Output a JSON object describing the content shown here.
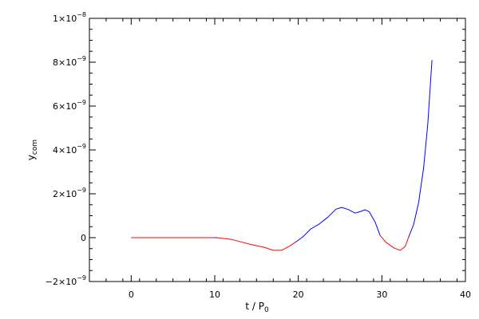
{
  "chart_data": {
    "type": "line",
    "title": "",
    "xlabel": "t / P",
    "xlabel_sub": "0",
    "ylabel": "y",
    "ylabel_sub": "com",
    "xlim": [
      -5,
      40
    ],
    "ylim": [
      -2e-09,
      1e-08
    ],
    "grid": false,
    "legend": "none",
    "x_ticks": [
      {
        "value": 0,
        "label": "0"
      },
      {
        "value": 10,
        "label": "10"
      },
      {
        "value": 20,
        "label": "20"
      },
      {
        "value": 30,
        "label": "30"
      },
      {
        "value": 40,
        "label": "40"
      }
    ],
    "y_ticks": [
      {
        "value": -2e-09,
        "mantissa": "−2×10",
        "exponent": "−9"
      },
      {
        "value": 0,
        "mantissa": "0",
        "exponent": ""
      },
      {
        "value": 2e-09,
        "mantissa": "2×10",
        "exponent": "−9"
      },
      {
        "value": 4e-09,
        "mantissa": "4×10",
        "exponent": "−9"
      },
      {
        "value": 6e-09,
        "mantissa": "6×10",
        "exponent": "−9"
      },
      {
        "value": 8e-09,
        "mantissa": "8×10",
        "exponent": "−9"
      },
      {
        "value": 1e-08,
        "mantissa": "1×10",
        "exponent": "−8"
      }
    ],
    "segments": [
      {
        "color": "#ff0000",
        "points": [
          [
            0,
            0
          ],
          [
            10,
            0
          ]
        ]
      },
      {
        "color": "#0000ff",
        "points": [
          [
            10,
            0
          ],
          [
            10.3,
            0
          ]
        ]
      },
      {
        "color": "#ff0000",
        "points": [
          [
            10.3,
            0
          ],
          [
            12,
            -8e-11
          ],
          [
            14,
            -2.8e-10
          ],
          [
            16,
            -4.5e-10
          ],
          [
            17,
            -5.8e-10
          ],
          [
            18,
            -5.8e-10
          ],
          [
            19,
            -3.8e-10
          ],
          [
            19.6,
            -2.2e-10
          ]
        ]
      },
      {
        "color": "#0000ff",
        "points": [
          [
            19.6,
            -2.2e-10
          ],
          [
            20.5,
            2e-11
          ],
          [
            21.5,
            4e-10
          ],
          [
            22.5,
            6.2e-10
          ],
          [
            23.5,
            9.2e-10
          ],
          [
            24.5,
            1.3e-09
          ],
          [
            25.2,
            1.38e-09
          ],
          [
            26,
            1.28e-09
          ],
          [
            26.8,
            1.12e-09
          ],
          [
            27.5,
            1.2e-09
          ],
          [
            28,
            1.27e-09
          ],
          [
            28.5,
            1.18e-09
          ],
          [
            29.2,
            7e-10
          ],
          [
            29.8,
            1e-10
          ]
        ]
      },
      {
        "color": "#ff0000",
        "points": [
          [
            29.8,
            1e-10
          ],
          [
            30.5,
            -2.2e-10
          ],
          [
            31.5,
            -4.8e-10
          ],
          [
            32.2,
            -5.8e-10
          ],
          [
            32.8,
            -4e-10
          ],
          [
            33.2,
            2e-11
          ]
        ]
      },
      {
        "color": "#0000ff",
        "points": [
          [
            33.2,
            2e-11
          ],
          [
            33.8,
            6e-10
          ],
          [
            34.4,
            1.6e-09
          ],
          [
            35,
            3.2e-09
          ],
          [
            35.5,
            5.2e-09
          ],
          [
            36,
            8.1e-09
          ]
        ]
      }
    ]
  }
}
